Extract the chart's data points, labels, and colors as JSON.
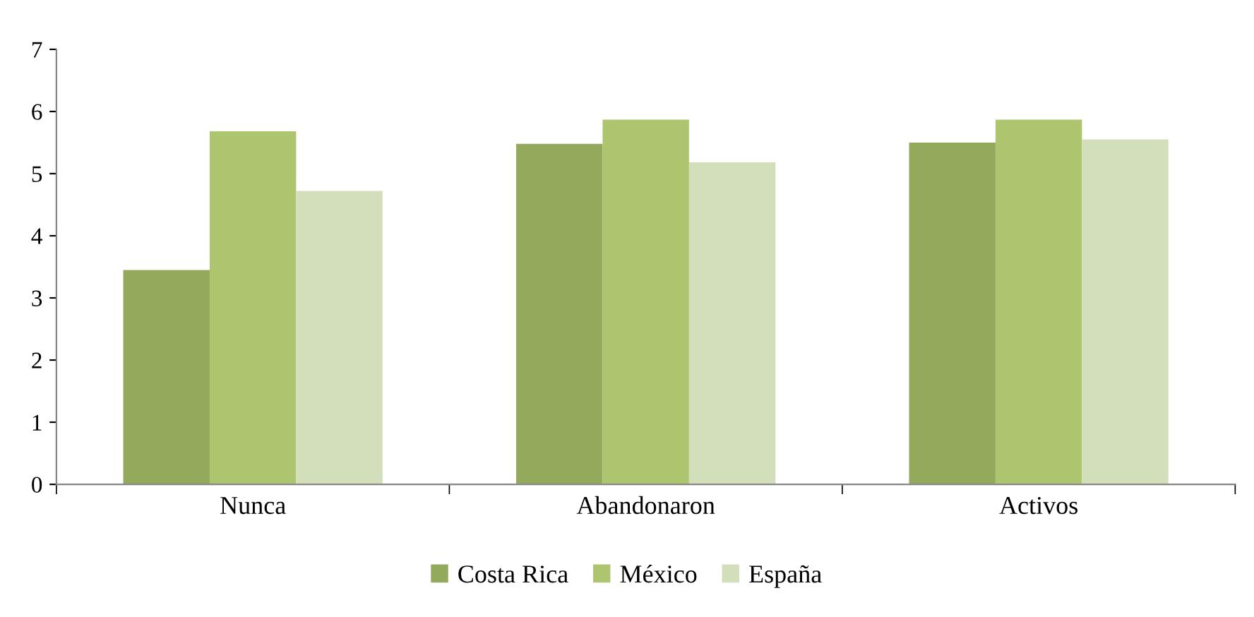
{
  "chart_data": {
    "type": "bar",
    "categories": [
      "Nunca",
      "Abandonaron",
      "Activos"
    ],
    "series": [
      {
        "name": "Costa Rica",
        "color": "#93a95b",
        "values": [
          3.45,
          5.48,
          5.5
        ]
      },
      {
        "name": "México",
        "color": "#adc56e",
        "values": [
          5.68,
          5.87,
          5.87
        ]
      },
      {
        "name": "España",
        "color": "#d2dfba",
        "values": [
          4.72,
          5.18,
          5.55
        ]
      }
    ],
    "ylim": [
      0,
      7
    ],
    "yticks": [
      0,
      1,
      2,
      3,
      4,
      5,
      6,
      7
    ],
    "grid": false,
    "legend": "bottom"
  }
}
